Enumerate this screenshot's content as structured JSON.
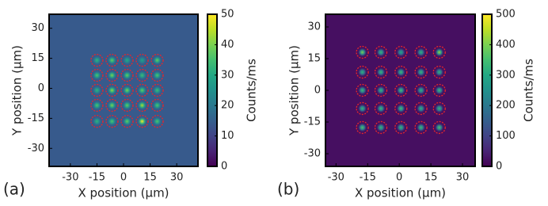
{
  "chart_data": [
    {
      "type": "heatmap",
      "panel_label": "(a)",
      "x_label": "X position (µm)",
      "y_label": "Y position (µm)",
      "colorbar_label": "Counts/ms",
      "colormap": "viridis",
      "circle_color": "#e8262a",
      "xlim": [
        -42,
        42
      ],
      "xticks": [
        -30,
        -15,
        0,
        15,
        30
      ],
      "ylim": [
        -39,
        37
      ],
      "yticks": [
        -30,
        -15,
        0,
        15,
        30
      ],
      "clim": [
        0,
        50
      ],
      "cticks": [
        0,
        10,
        20,
        30,
        40,
        50
      ],
      "background": 14,
      "x": [
        -15,
        -6.5,
        2,
        10.5,
        19
      ],
      "y": [
        14,
        6.5,
        -1,
        -8.5,
        -16.5
      ],
      "values": [
        [
          32,
          38,
          30,
          28,
          38
        ],
        [
          36,
          40,
          38,
          34,
          36
        ],
        [
          32,
          42,
          40,
          38,
          34
        ],
        [
          36,
          40,
          38,
          44,
          36
        ],
        [
          32,
          36,
          38,
          50,
          36
        ]
      ]
    },
    {
      "type": "heatmap",
      "panel_label": "(b)",
      "x_label": "X position (µm)",
      "y_label": "Y position (µm)",
      "colorbar_label": "Counts/ms",
      "colormap": "viridis",
      "circle_color": "#e8262a",
      "xlim": [
        -35,
        36
      ],
      "xticks": [
        -30,
        -15,
        0,
        15,
        30
      ],
      "ylim": [
        -36,
        36
      ],
      "yticks": [
        -30,
        -15,
        0,
        15,
        30
      ],
      "clim": [
        0,
        500
      ],
      "cticks": [
        0,
        100,
        200,
        300,
        400,
        500
      ],
      "background": 20,
      "x": [
        -17.5,
        -8.7,
        0.8,
        10.3,
        19
      ],
      "y": [
        18,
        8.6,
        0,
        -8.6,
        -17.6
      ],
      "values": [
        [
          400,
          330,
          300,
          320,
          420
        ],
        [
          320,
          330,
          340,
          330,
          320
        ],
        [
          340,
          330,
          350,
          320,
          340
        ],
        [
          330,
          340,
          350,
          320,
          330
        ],
        [
          360,
          330,
          330,
          340,
          360
        ]
      ]
    }
  ]
}
